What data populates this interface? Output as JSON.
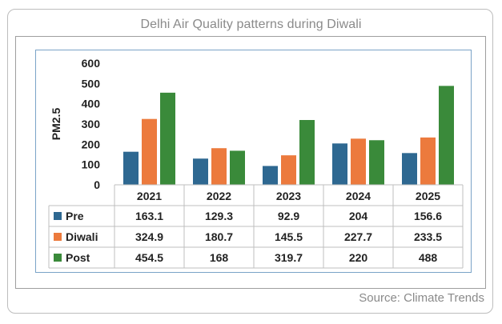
{
  "title": "Delhi Air Quality patterns during Diwali",
  "source": "Source: Climate Trends",
  "chart_data": {
    "type": "bar",
    "title": "Delhi Air Quality patterns during Diwali",
    "xlabel": "",
    "ylabel": "PM2.5",
    "ylim": [
      0,
      600
    ],
    "yticks": [
      0,
      100,
      200,
      300,
      400,
      500,
      600
    ],
    "grid": false,
    "categories": [
      "2021",
      "2022",
      "2023",
      "2024",
      "2025"
    ],
    "series": [
      {
        "name": "Pre",
        "color": "#2e6891",
        "values": [
          163.1,
          129.3,
          92.9,
          204,
          156.6
        ],
        "labels": [
          "163.1",
          "129.3",
          "92.9",
          "204",
          "156.6"
        ]
      },
      {
        "name": "Diwali",
        "color": "#ec7a3d",
        "values": [
          324.9,
          180.7,
          145.5,
          227.7,
          233.5
        ],
        "labels": [
          "324.9",
          "180.7",
          "145.5",
          "227.7",
          "233.5"
        ]
      },
      {
        "name": "Post",
        "color": "#3a8a3a",
        "values": [
          454.5,
          168,
          319.7,
          220,
          488
        ],
        "labels": [
          "454.5",
          "168",
          "319.7",
          "220",
          "488"
        ]
      }
    ],
    "legend": "data-table"
  }
}
